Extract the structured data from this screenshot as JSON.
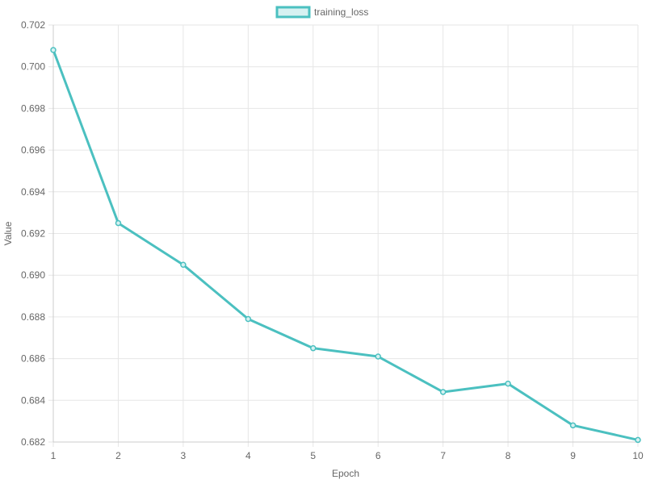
{
  "chart_data": {
    "type": "line",
    "title": "",
    "xlabel": "Epoch",
    "ylabel": "Value",
    "x": [
      1,
      2,
      3,
      4,
      5,
      6,
      7,
      8,
      9,
      10
    ],
    "x_tick_labels": [
      "1",
      "2",
      "3",
      "4",
      "5",
      "6",
      "7",
      "8",
      "9",
      "10"
    ],
    "y_tick_labels": [
      "0.682",
      "0.684",
      "0.686",
      "0.688",
      "0.690",
      "0.692",
      "0.694",
      "0.696",
      "0.698",
      "0.700",
      "0.702"
    ],
    "ylim": [
      0.682,
      0.702
    ],
    "grid": true,
    "legend_position": "top-center",
    "series": [
      {
        "name": "training_loss",
        "values": [
          0.7008,
          0.6925,
          0.6905,
          0.6879,
          0.6865,
          0.6861,
          0.6844,
          0.6848,
          0.6828,
          0.6821
        ],
        "color": "#4bc0c0",
        "fill_color": "#d6f1f1"
      }
    ]
  },
  "colors": {
    "grid": "#e6e6e6",
    "axis": "#cccccc",
    "text": "#666666"
  }
}
